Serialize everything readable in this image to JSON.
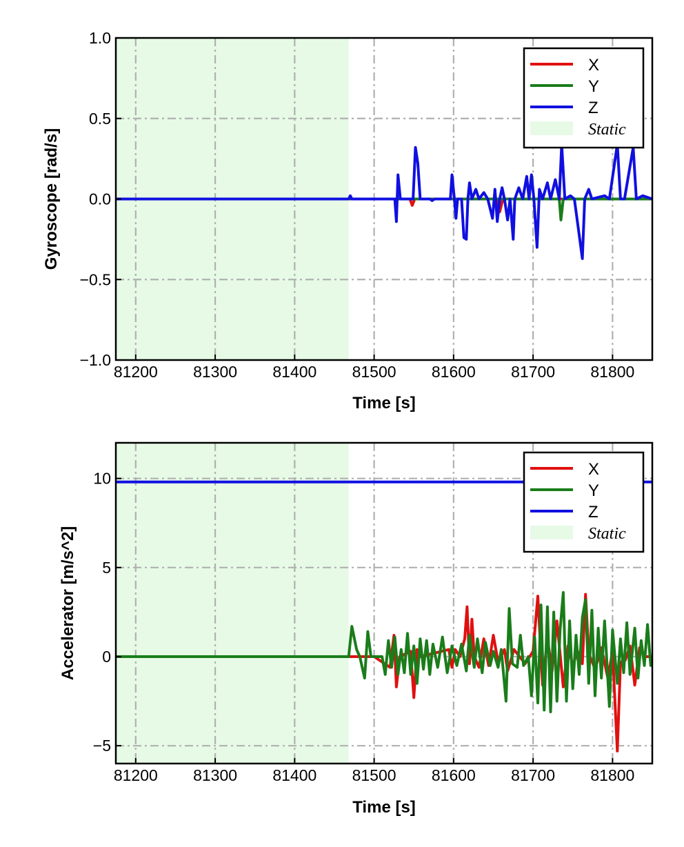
{
  "chart_data": [
    {
      "type": "line",
      "xlabel": "Time [s]",
      "ylabel": "Gyroscope [rad/s]",
      "xlim": [
        81175,
        81850
      ],
      "ylim": [
        -1.0,
        1.0
      ],
      "xticks": [
        81200,
        81300,
        81400,
        81500,
        81600,
        81700,
        81800
      ],
      "yticks": [
        -1.0,
        -0.5,
        0.0,
        0.5,
        1.0
      ],
      "ytick_labels": [
        "−1.0",
        "−0.5",
        "0.0",
        "0.5",
        "1.0"
      ],
      "grid": true,
      "legend_position": "top-right",
      "static_region": {
        "label": "Static",
        "x_start": 81175,
        "x_end": 81468,
        "color": "#e6fae6"
      },
      "series": [
        {
          "name": "X",
          "color": "#e01010",
          "points": [
            [
              81175,
              0
            ],
            [
              81545,
              0
            ],
            [
              81548,
              -0.04
            ],
            [
              81551,
              0
            ],
            [
              81655,
              0
            ],
            [
              81658,
              -0.08
            ],
            [
              81662,
              0
            ],
            [
              81850,
              0
            ]
          ]
        },
        {
          "name": "Y",
          "color": "#1a7d1a",
          "points": [
            [
              81175,
              0
            ],
            [
              81733,
              0
            ],
            [
              81735,
              -0.13
            ],
            [
              81738,
              0
            ],
            [
              81850,
              0
            ]
          ]
        },
        {
          "name": "Z",
          "color": "#1010e0",
          "points": [
            [
              81175,
              0
            ],
            [
              81468,
              0
            ],
            [
              81470,
              0.02
            ],
            [
              81472,
              0
            ],
            [
              81526,
              0
            ],
            [
              81528,
              -0.14
            ],
            [
              81530,
              0.15
            ],
            [
              81533,
              0
            ],
            [
              81549,
              0
            ],
            [
              81552,
              0.32
            ],
            [
              81555,
              0.22
            ],
            [
              81558,
              0
            ],
            [
              81570,
              0
            ],
            [
              81573,
              -0.01
            ],
            [
              81576,
              0
            ],
            [
              81596,
              0
            ],
            [
              81598,
              0.15
            ],
            [
              81601,
              0
            ],
            [
              81603,
              -0.12
            ],
            [
              81605,
              0
            ],
            [
              81610,
              0
            ],
            [
              81613,
              -0.24
            ],
            [
              81616,
              -0.25
            ],
            [
              81618,
              0
            ],
            [
              81620,
              0.1
            ],
            [
              81623,
              0
            ],
            [
              81628,
              0.06
            ],
            [
              81632,
              0
            ],
            [
              81638,
              0.04
            ],
            [
              81643,
              0
            ],
            [
              81649,
              -0.12
            ],
            [
              81652,
              0.06
            ],
            [
              81655,
              -0.14
            ],
            [
              81658,
              0
            ],
            [
              81661,
              0.07
            ],
            [
              81664,
              0
            ],
            [
              81668,
              -0.13
            ],
            [
              81671,
              0
            ],
            [
              81675,
              -0.25
            ],
            [
              81677,
              0
            ],
            [
              81682,
              0.07
            ],
            [
              81687,
              0
            ],
            [
              81692,
              0.14
            ],
            [
              81695,
              0
            ],
            [
              81698,
              0.15
            ],
            [
              81701,
              0
            ],
            [
              81705,
              -0.3
            ],
            [
              81708,
              0.06
            ],
            [
              81712,
              0
            ],
            [
              81718,
              0.1
            ],
            [
              81722,
              0
            ],
            [
              81728,
              0.12
            ],
            [
              81733,
              0
            ],
            [
              81736,
              0.34
            ],
            [
              81740,
              0
            ],
            [
              81747,
              0.02
            ],
            [
              81752,
              0
            ],
            [
              81762,
              -0.37
            ],
            [
              81765,
              0
            ],
            [
              81770,
              0.06
            ],
            [
              81774,
              0
            ],
            [
              81790,
              0.02
            ],
            [
              81796,
              0
            ],
            [
              81806,
              0.34
            ],
            [
              81810,
              0
            ],
            [
              81815,
              0
            ],
            [
              81826,
              0.32
            ],
            [
              81830,
              0
            ],
            [
              81838,
              0.02
            ],
            [
              81850,
              0
            ]
          ]
        }
      ]
    },
    {
      "type": "line",
      "xlabel": "Time [s]",
      "ylabel": "Accelerator [m/s^2]",
      "xlim": [
        81175,
        81850
      ],
      "ylim": [
        -6.0,
        12.0
      ],
      "xticks": [
        81200,
        81300,
        81400,
        81500,
        81600,
        81700,
        81800
      ],
      "yticks": [
        -5,
        0,
        5,
        10
      ],
      "ytick_labels": [
        "−5",
        "0",
        "5",
        "10"
      ],
      "grid": true,
      "legend_position": "top-right",
      "static_region": {
        "label": "Static",
        "x_start": 81175,
        "x_end": 81468,
        "color": "#e6fae6"
      },
      "series": [
        {
          "name": "X",
          "color": "#e01010",
          "points": [
            [
              81175,
              0
            ],
            [
              81468,
              0
            ],
            [
              81500,
              0
            ],
            [
              81520,
              -0.6
            ],
            [
              81525,
              1.2
            ],
            [
              81528,
              -1.7
            ],
            [
              81532,
              0
            ],
            [
              81546,
              0.3
            ],
            [
              81550,
              -2.3
            ],
            [
              81554,
              0.4
            ],
            [
              81558,
              0
            ],
            [
              81594,
              0.4
            ],
            [
              81598,
              -0.6
            ],
            [
              81602,
              0.4
            ],
            [
              81608,
              0
            ],
            [
              81614,
              1.0
            ],
            [
              81617,
              2.8
            ],
            [
              81620,
              -0.4
            ],
            [
              81623,
              2.1
            ],
            [
              81626,
              0
            ],
            [
              81632,
              -0.6
            ],
            [
              81638,
              1.0
            ],
            [
              81644,
              -0.5
            ],
            [
              81650,
              1.2
            ],
            [
              81656,
              -0.3
            ],
            [
              81664,
              0.4
            ],
            [
              81668,
              -0.8
            ],
            [
              81676,
              0.4
            ],
            [
              81690,
              -0.4
            ],
            [
              81700,
              0.3
            ],
            [
              81706,
              3.4
            ],
            [
              81712,
              -1.6
            ],
            [
              81718,
              1.0
            ],
            [
              81724,
              -0.8
            ],
            [
              81730,
              2.0
            ],
            [
              81738,
              -1.7
            ],
            [
              81744,
              0.6
            ],
            [
              81750,
              -0.5
            ],
            [
              81756,
              0.3
            ],
            [
              81762,
              -0.4
            ],
            [
              81766,
              3.5
            ],
            [
              81770,
              0.2
            ],
            [
              81778,
              -0.7
            ],
            [
              81786,
              0.5
            ],
            [
              81794,
              -1.2
            ],
            [
              81800,
              0.3
            ],
            [
              81806,
              -5.3
            ],
            [
              81810,
              -0.3
            ],
            [
              81816,
              -0.2
            ],
            [
              81822,
              0.6
            ],
            [
              81828,
              -1.6
            ],
            [
              81834,
              0.5
            ],
            [
              81840,
              0
            ],
            [
              81850,
              0
            ]
          ]
        },
        {
          "name": "Y",
          "color": "#1a7d1a",
          "points": [
            [
              81175,
              0
            ],
            [
              81468,
              0
            ],
            [
              81472,
              1.7
            ],
            [
              81478,
              0.4
            ],
            [
              81482,
              0
            ],
            [
              81488,
              -1.2
            ],
            [
              81492,
              1.4
            ],
            [
              81496,
              0
            ],
            [
              81510,
              0
            ],
            [
              81514,
              -1.0
            ],
            [
              81518,
              0.9
            ],
            [
              81522,
              -0.6
            ],
            [
              81526,
              1.1
            ],
            [
              81530,
              -1.0
            ],
            [
              81534,
              0.4
            ],
            [
              81538,
              -0.9
            ],
            [
              81542,
              1.3
            ],
            [
              81546,
              -1.0
            ],
            [
              81550,
              0.6
            ],
            [
              81554,
              -1.5
            ],
            [
              81558,
              1.0
            ],
            [
              81562,
              -0.7
            ],
            [
              81566,
              0.9
            ],
            [
              81570,
              -1.0
            ],
            [
              81574,
              0.7
            ],
            [
              81580,
              -0.6
            ],
            [
              81586,
              1.1
            ],
            [
              81592,
              -0.9
            ],
            [
              81598,
              0.6
            ],
            [
              81604,
              -0.5
            ],
            [
              81610,
              0.7
            ],
            [
              81616,
              -0.8
            ],
            [
              81620,
              1.2
            ],
            [
              81626,
              -0.6
            ],
            [
              81630,
              1.0
            ],
            [
              81636,
              -0.9
            ],
            [
              81640,
              0.8
            ],
            [
              81646,
              -0.5
            ],
            [
              81650,
              0.3
            ],
            [
              81656,
              -0.6
            ],
            [
              81660,
              0.4
            ],
            [
              81666,
              -2.5
            ],
            [
              81670,
              2.7
            ],
            [
              81674,
              -0.4
            ],
            [
              81680,
              -0.6
            ],
            [
              81684,
              1.2
            ],
            [
              81688,
              -0.5
            ],
            [
              81694,
              0
            ],
            [
              81698,
              -2.2
            ],
            [
              81702,
              1.1
            ],
            [
              81706,
              -2.6
            ],
            [
              81710,
              2.9
            ],
            [
              81714,
              -3.0
            ],
            [
              81718,
              2.8
            ],
            [
              81722,
              -3.1
            ],
            [
              81726,
              2.5
            ],
            [
              81730,
              -2.5
            ],
            [
              81734,
              1.5
            ],
            [
              81738,
              3.6
            ],
            [
              81742,
              -2.5
            ],
            [
              81746,
              2.0
            ],
            [
              81750,
              -1.8
            ],
            [
              81754,
              1.2
            ],
            [
              81758,
              -1.0
            ],
            [
              81762,
              2.2
            ],
            [
              81766,
              3.2
            ],
            [
              81770,
              -1.5
            ],
            [
              81774,
              2.6
            ],
            [
              81778,
              -2.2
            ],
            [
              81782,
              1.6
            ],
            [
              81786,
              -1.2
            ],
            [
              81790,
              2.0
            ],
            [
              81796,
              -2.8
            ],
            [
              81800,
              1.5
            ],
            [
              81806,
              -1.5
            ],
            [
              81810,
              1.0
            ],
            [
              81814,
              -0.9
            ],
            [
              81818,
              1.9
            ],
            [
              81822,
              -1.0
            ],
            [
              81828,
              1.6
            ],
            [
              81832,
              -1.2
            ],
            [
              81836,
              0.9
            ],
            [
              81840,
              -0.5
            ],
            [
              81844,
              1.8
            ],
            [
              81848,
              -0.5
            ],
            [
              81850,
              0
            ]
          ]
        },
        {
          "name": "Z",
          "color": "#1010e0",
          "points": [
            [
              81175,
              9.8
            ],
            [
              81850,
              9.8
            ]
          ]
        }
      ]
    }
  ]
}
